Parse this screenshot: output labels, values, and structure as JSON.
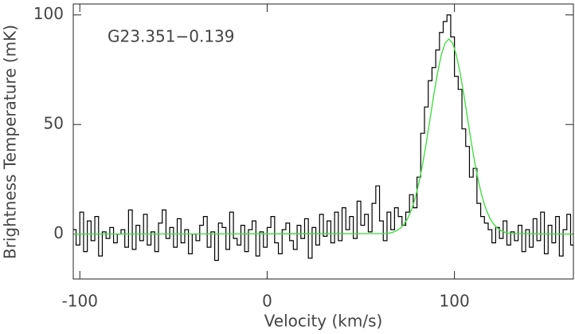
{
  "chart_data": {
    "type": "line",
    "annotation": "G23.351−0.139",
    "xlabel": "Velocity (km/s)",
    "ylabel": "Brightness Temperature (mK)",
    "xlim": [
      -103.5,
      163.5
    ],
    "ylim": [
      -20.5,
      105
    ],
    "xticks": [
      -100,
      0,
      100
    ],
    "yticks": [
      0,
      50,
      100
    ],
    "series": [
      {
        "color": "#000000",
        "step": true,
        "x": [
          -103,
          -101,
          -99,
          -97,
          -95,
          -93,
          -91,
          -89,
          -87,
          -85,
          -83,
          -81,
          -79,
          -77,
          -75,
          -73,
          -71,
          -69,
          -67,
          -65,
          -63,
          -61,
          -59,
          -57,
          -55,
          -53,
          -51,
          -49,
          -47,
          -45,
          -43,
          -41,
          -39,
          -37,
          -35,
          -33,
          -31,
          -29,
          -27,
          -25,
          -23,
          -21,
          -19,
          -17,
          -15,
          -13,
          -11,
          -9,
          -7,
          -5,
          -3,
          -1,
          1,
          3,
          5,
          7,
          9,
          11,
          13,
          15,
          17,
          19,
          21,
          23,
          25,
          27,
          29,
          31,
          33,
          35,
          37,
          39,
          41,
          43,
          45,
          47,
          49,
          51,
          53,
          55,
          57,
          59,
          61,
          63,
          65,
          67,
          69,
          71,
          73,
          75,
          77,
          79,
          81,
          83,
          85,
          87,
          89,
          91,
          93,
          95,
          97,
          99,
          101,
          103,
          105,
          107,
          109,
          111,
          113,
          115,
          117,
          119,
          121,
          123,
          125,
          127,
          129,
          131,
          133,
          135,
          137,
          139,
          141,
          143,
          145,
          147,
          149,
          151,
          153,
          155,
          157,
          159,
          161,
          163
        ],
        "values": [
          2,
          -5,
          10,
          -8,
          6,
          -3,
          8,
          -10,
          1,
          -2,
          3,
          -4,
          0,
          2,
          -6,
          11,
          -7,
          4,
          -3,
          9,
          -5,
          1,
          -8,
          5,
          11,
          -2,
          3,
          -6,
          7,
          -4,
          2,
          -9,
          0,
          -3,
          4,
          8,
          -6,
          1,
          -12,
          5,
          3,
          -7,
          10,
          -2,
          -5,
          4,
          -8,
          2,
          6,
          -10,
          1,
          -6,
          3,
          8,
          -4,
          -9,
          2,
          5,
          -3,
          -7,
          4,
          -2,
          7,
          -11,
          3,
          -5,
          9,
          -1,
          6,
          -4,
          10,
          -3,
          12,
          2,
          8,
          -2,
          15,
          4,
          9,
          1,
          14,
          22,
          6,
          -3,
          10,
          2,
          12,
          8,
          4,
          10,
          18,
          12,
          26,
          46,
          58,
          70,
          76,
          84,
          92,
          97,
          100,
          90,
          72,
          66,
          48,
          40,
          26,
          30,
          14,
          8,
          5,
          2,
          -4,
          3,
          -2,
          6,
          -5,
          1,
          -3,
          4,
          -8,
          2,
          -6,
          7,
          -3,
          10,
          -9,
          4,
          -4,
          8,
          -10,
          2,
          9,
          -5
        ]
      },
      {
        "color": "#44dd44",
        "step": false,
        "x": [
          -103,
          63,
          65,
          67,
          69,
          71,
          73,
          75,
          77,
          79,
          81,
          83,
          85,
          87,
          89,
          91,
          93,
          95,
          97,
          99,
          101,
          103,
          105,
          107,
          109,
          111,
          113,
          115,
          117,
          119,
          121,
          123,
          125,
          127,
          129,
          131,
          163
        ],
        "values": [
          0,
          0.2,
          0.4,
          0.8,
          1.5,
          2.6,
          4.4,
          7.1,
          11.0,
          16.3,
          23.3,
          31.9,
          41.9,
          52.7,
          63.7,
          73.7,
          81.8,
          87.2,
          89,
          87.2,
          81.8,
          73.7,
          63.7,
          52.7,
          41.9,
          31.9,
          23.3,
          16.3,
          11.0,
          7.1,
          4.4,
          2.6,
          1.5,
          0.8,
          0.4,
          0.2,
          0
        ]
      }
    ]
  }
}
